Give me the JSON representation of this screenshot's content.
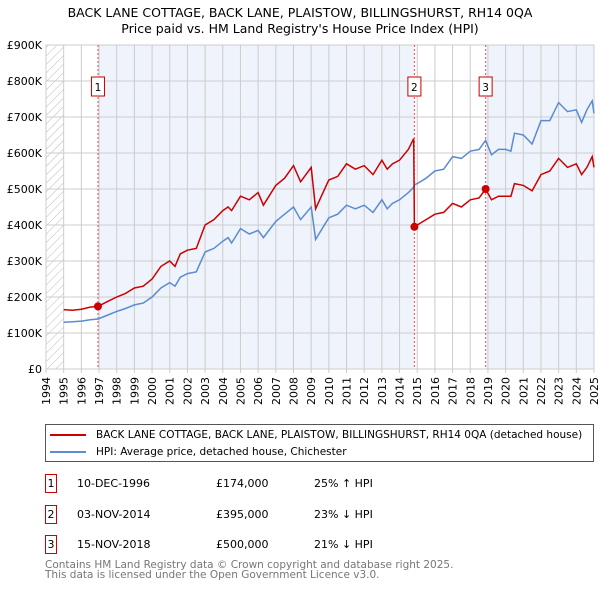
{
  "chart_data": {
    "type": "line",
    "title": "BACK LANE COTTAGE, BACK LANE, PLAISTOW, BILLINGSHURST, RH14 0QA",
    "subtitle": "Price paid vs. HM Land Registry's House Price Index (HPI)",
    "xlim": [
      1994,
      2025
    ],
    "ylim": [
      0,
      900000
    ],
    "x_ticks": [
      "1994",
      "1995",
      "1996",
      "1997",
      "1998",
      "1999",
      "2000",
      "2001",
      "2002",
      "2003",
      "2004",
      "2005",
      "2006",
      "2007",
      "2008",
      "2009",
      "2010",
      "2011",
      "2012",
      "2013",
      "2014",
      "2015",
      "2016",
      "2017",
      "2018",
      "2019",
      "2020",
      "2021",
      "2022",
      "2023",
      "2024",
      "2025"
    ],
    "y_ticks": [
      {
        "v": 0,
        "label": "£0"
      },
      {
        "v": 100000,
        "label": "£100K"
      },
      {
        "v": 200000,
        "label": "£200K"
      },
      {
        "v": 300000,
        "label": "£300K"
      },
      {
        "v": 400000,
        "label": "£400K"
      },
      {
        "v": 500000,
        "label": "£500K"
      },
      {
        "v": 600000,
        "label": "£600K"
      },
      {
        "v": 700000,
        "label": "£700K"
      },
      {
        "v": 800000,
        "label": "£800K"
      },
      {
        "v": 900000,
        "label": "£900K"
      }
    ],
    "series": [
      {
        "name": "BACK LANE COTTAGE, BACK LANE, PLAISTOW, BILLINGSHURST, RH14 0QA (detached house)",
        "color": "#cc0000",
        "x": [
          1995,
          1995.5,
          1996,
          1996.5,
          1996.94,
          1997.5,
          1998,
          1998.5,
          1999,
          1999.5,
          2000,
          2000.5,
          2001,
          2001.3,
          2001.6,
          2002,
          2002.5,
          2003,
          2003.5,
          2004,
          2004.3,
          2004.5,
          2005,
          2005.5,
          2006,
          2006.3,
          2007,
          2007.5,
          2008,
          2008.4,
          2009,
          2009.25,
          2010,
          2010.5,
          2011,
          2011.5,
          2012,
          2012.5,
          2013,
          2013.3,
          2013.6,
          2014,
          2014.5,
          2014.8,
          2014.84,
          2015,
          2015.5,
          2016,
          2016.5,
          2017,
          2017.5,
          2018,
          2018.5,
          2018.87,
          2019.2,
          2019.6,
          2020,
          2020.3,
          2020.5,
          2021,
          2021.5,
          2022,
          2022.5,
          2023,
          2023.5,
          2024,
          2024.3,
          2024.6,
          2024.9,
          2025
        ],
        "y": [
          165000,
          163000,
          166000,
          172000,
          174000,
          188000,
          200000,
          210000,
          225000,
          230000,
          250000,
          285000,
          300000,
          285000,
          320000,
          330000,
          335000,
          400000,
          415000,
          440000,
          450000,
          440000,
          480000,
          470000,
          490000,
          455000,
          510000,
          530000,
          565000,
          520000,
          560000,
          445000,
          525000,
          535000,
          570000,
          555000,
          565000,
          540000,
          580000,
          555000,
          570000,
          580000,
          610000,
          640000,
          395000,
          400000,
          415000,
          430000,
          435000,
          460000,
          450000,
          470000,
          475000,
          500000,
          470000,
          480000,
          480000,
          480000,
          515000,
          510000,
          495000,
          540000,
          550000,
          585000,
          560000,
          570000,
          540000,
          560000,
          590000,
          560000
        ]
      },
      {
        "name": "HPI: Average price, detached house, Chichester",
        "color": "#5b8bd0",
        "x": [
          1995,
          1995.5,
          1996,
          1996.5,
          1996.94,
          1997.5,
          1998,
          1998.5,
          1999,
          1999.5,
          2000,
          2000.5,
          2001,
          2001.3,
          2001.6,
          2002,
          2002.5,
          2003,
          2003.5,
          2004,
          2004.3,
          2004.5,
          2005,
          2005.5,
          2006,
          2006.3,
          2007,
          2007.5,
          2008,
          2008.4,
          2009,
          2009.25,
          2010,
          2010.5,
          2011,
          2011.5,
          2012,
          2012.5,
          2013,
          2013.3,
          2013.6,
          2014,
          2014.5,
          2014.8,
          2014.84,
          2015,
          2015.5,
          2016,
          2016.5,
          2017,
          2017.5,
          2018,
          2018.5,
          2018.87,
          2019.2,
          2019.6,
          2020,
          2020.3,
          2020.5,
          2021,
          2021.5,
          2022,
          2022.5,
          2023,
          2023.5,
          2024,
          2024.3,
          2024.6,
          2024.9,
          2025
        ],
        "y": [
          130000,
          131000,
          133000,
          137000,
          139000,
          150000,
          160000,
          168000,
          178000,
          183000,
          200000,
          225000,
          240000,
          230000,
          255000,
          265000,
          270000,
          325000,
          335000,
          355000,
          365000,
          350000,
          390000,
          375000,
          385000,
          365000,
          410000,
          430000,
          450000,
          415000,
          450000,
          360000,
          420000,
          430000,
          455000,
          445000,
          455000,
          435000,
          470000,
          445000,
          460000,
          470000,
          490000,
          505000,
          512000,
          515000,
          530000,
          550000,
          555000,
          590000,
          585000,
          605000,
          610000,
          635000,
          595000,
          610000,
          610000,
          605000,
          655000,
          650000,
          625000,
          690000,
          690000,
          740000,
          715000,
          720000,
          685000,
          720000,
          745000,
          710000
        ]
      }
    ],
    "sales": [
      {
        "n": "1",
        "x": 1996.94,
        "date": "10-DEC-1996",
        "price": 174000,
        "price_label": "£174,000",
        "hpi": "25% ↑ HPI"
      },
      {
        "n": "2",
        "x": 2014.84,
        "date": "03-NOV-2014",
        "price": 395000,
        "price_label": "£395,000",
        "hpi": "23% ↓ HPI"
      },
      {
        "n": "3",
        "x": 2018.87,
        "date": "15-NOV-2018",
        "price": 500000,
        "price_label": "£500,000",
        "hpi": "21% ↓ HPI"
      }
    ],
    "legend_placement": "below",
    "grid": true
  },
  "footer": {
    "line1": "Contains HM Land Registry data © Crown copyright and database right 2025.",
    "line2": "This data is licensed under the Open Government Licence v3.0."
  }
}
